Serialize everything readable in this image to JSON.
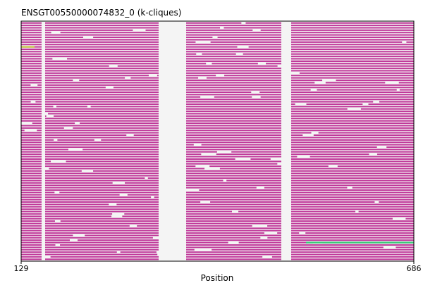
{
  "chart_data": {
    "type": "heatmap",
    "title": "ENSGT00550000074832_0 (k-cliques)",
    "xlabel": "Position",
    "ylabel": "",
    "xlim": [
      129,
      686
    ],
    "x_tick_labels": [
      "129",
      "686"
    ],
    "grid": false,
    "legend": "none",
    "row_count": 100,
    "colors": {
      "track": "#c0399a",
      "gap_line": "#e8e8e8",
      "yellow_highlight": "#c8c84a",
      "green_highlight": "#3cc87a",
      "axes": "#000000"
    },
    "global_gap_columns": [
      [
        158,
        163
      ],
      [
        324,
        363
      ],
      [
        498,
        512
      ]
    ],
    "highlights": [
      {
        "row": 10,
        "x_start": 129,
        "x_end": 148,
        "color": "yellow_highlight"
      },
      {
        "row": 92,
        "x_start": 533,
        "x_end": 686,
        "color": "green_highlight"
      }
    ]
  }
}
